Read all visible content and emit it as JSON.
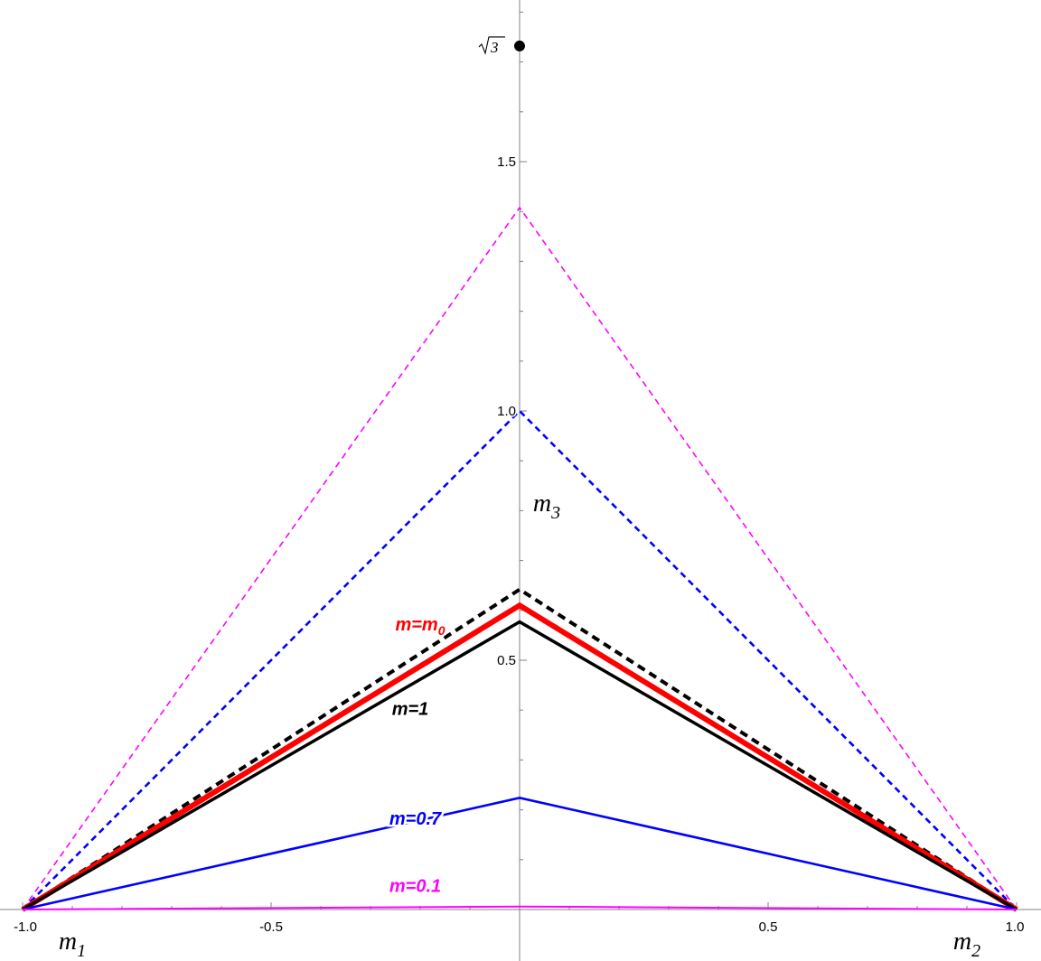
{
  "chart_data": {
    "type": "line",
    "title": "",
    "xlabel": "",
    "ylabel": "",
    "xlim": [
      -1.0,
      1.0
    ],
    "ylim": [
      0,
      1.83
    ],
    "x_ticks": [
      {
        "value": -1.0,
        "label": "-1.0"
      },
      {
        "value": -0.5,
        "label": "-0.5"
      },
      {
        "value": 0.5,
        "label": "0.5"
      },
      {
        "value": 1.0,
        "label": "1.0"
      }
    ],
    "y_ticks": [
      {
        "value": 0.5,
        "label": "0.5"
      },
      {
        "value": 1.0,
        "label": "1.0"
      },
      {
        "value": 1.5,
        "label": "1.5"
      }
    ],
    "mass_labels": {
      "m1": {
        "base": "m",
        "sub": "1",
        "x": -1.0,
        "y": 0
      },
      "m2": {
        "base": "m",
        "sub": "2",
        "x": 1.0,
        "y": 0
      },
      "m3": {
        "base": "m",
        "sub": "3",
        "x": 0,
        "y": 0.79
      }
    },
    "point": {
      "x": 0,
      "y": 1.732,
      "label": "3"
    },
    "series": [
      {
        "name": "",
        "x": [
          -1,
          0,
          1
        ],
        "y": [
          0,
          1.408,
          0
        ],
        "color": "#ff00ff",
        "dashed": true,
        "width": 1.6
      },
      {
        "name": "",
        "x": [
          -1,
          0,
          1
        ],
        "y": [
          0,
          1.0,
          0
        ],
        "color": "#0000ff",
        "dashed": true,
        "width": 2.6
      },
      {
        "name": "",
        "x": [
          -1,
          0,
          1
        ],
        "y": [
          0,
          0.642,
          0
        ],
        "color": "#000000",
        "dashed": true,
        "width": 4
      },
      {
        "name": "m=m",
        "name_sub": "0",
        "x": [
          -1,
          0,
          1
        ],
        "y": [
          0,
          0.61,
          0
        ],
        "color": "#ff0000",
        "dashed": false,
        "width": 6,
        "label_at": [
          -0.2,
          0.56
        ]
      },
      {
        "name": "m=1",
        "x": [
          -1,
          0,
          1
        ],
        "y": [
          0,
          0.577,
          0
        ],
        "color": "#000000",
        "dashed": false,
        "width": 3.5,
        "label_at": [
          -0.22,
          0.39
        ]
      },
      {
        "name": "m=0.7",
        "x": [
          -1,
          0,
          1
        ],
        "y": [
          0,
          0.224,
          0
        ],
        "color": "#0000ff",
        "dashed": false,
        "width": 2.6,
        "label_at": [
          -0.21,
          0.17
        ]
      },
      {
        "name": "m=0.1",
        "x": [
          -1,
          0,
          1
        ],
        "y": [
          0,
          0.006,
          0
        ],
        "color": "#ff00ff",
        "dashed": false,
        "width": 2,
        "label_at": [
          -0.21,
          0.035
        ]
      }
    ]
  }
}
